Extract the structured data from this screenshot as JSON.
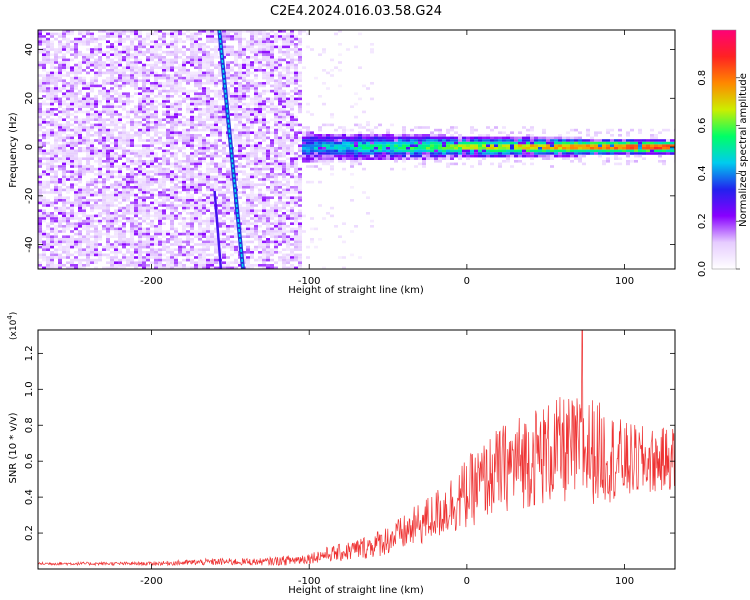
{
  "figure_title": "C2E4.2024.016.03.58.G24",
  "chart_data": [
    {
      "type": "heatmap",
      "xlabel": "Height of straight line (km)",
      "ylabel": "Frequency (Hz)",
      "xlim": [
        -272,
        132
      ],
      "ylim": [
        -50,
        48
      ],
      "x_ticks": [
        -200,
        -100,
        0,
        100
      ],
      "x_tick_labels": [
        "-200",
        "-100",
        "0",
        "100"
      ],
      "y_ticks": [
        -40,
        -20,
        0,
        20,
        40
      ],
      "y_tick_labels": [
        "-40",
        "-20",
        "0",
        "20",
        "40"
      ],
      "colorbar": {
        "label": "Normalized spectral amplitude",
        "range": [
          0,
          1
        ],
        "ticks": [
          0.0,
          0.2,
          0.4,
          0.6,
          0.8
        ],
        "tick_labels": [
          "0.0",
          "0.2",
          "0.4",
          "0.6",
          "0.8"
        ],
        "colormap": [
          "#ffffff",
          "#e6ccff",
          "#8800ff",
          "#2222ee",
          "#00ccee",
          "#00ff66",
          "#ccee00",
          "#ff8800",
          "#ff2222",
          "#ff0077"
        ]
      },
      "features": {
        "noise_region_x": [
          -272,
          -105
        ],
        "transition_x": -105,
        "signal_band_center_hz": 0,
        "signal_band_halfwidth_hz": [
          6,
          3
        ],
        "streak_line": {
          "x_start": -157,
          "y_start": 48,
          "x_end": -142,
          "y_end": -50
        },
        "streak_line_2": {
          "x_start": -160,
          "y_start": -18,
          "x_end": -156,
          "y_end": -50
        }
      }
    },
    {
      "type": "line",
      "xlabel": "Height of straight line (km)",
      "ylabel": "SNR (10 * v/v)",
      "y_multiplier": "(x10",
      "y_multiplier_exp": "4",
      "y_multiplier_close": ")",
      "xlim": [
        -272,
        132
      ],
      "ylim": [
        0,
        1.33
      ],
      "x_ticks": [
        -200,
        -100,
        0,
        100
      ],
      "x_tick_labels": [
        "-200",
        "-100",
        "0",
        "100"
      ],
      "y_ticks": [
        0.2,
        0.4,
        0.6,
        0.8,
        1.0,
        1.2
      ],
      "y_tick_labels": [
        "0.2",
        "0.4",
        "0.6",
        "0.8",
        "1.0",
        "1.2"
      ],
      "color": "#ee3333",
      "envelope": {
        "x": [
          -272,
          -200,
          -160,
          -130,
          -110,
          -100,
          -90,
          -80,
          -60,
          -40,
          -20,
          0,
          20,
          40,
          60,
          80,
          100,
          120,
          132
        ],
        "mean": [
          0.03,
          0.03,
          0.04,
          0.04,
          0.05,
          0.06,
          0.08,
          0.09,
          0.13,
          0.2,
          0.3,
          0.42,
          0.55,
          0.62,
          0.66,
          0.66,
          0.6,
          0.6,
          0.62
        ],
        "amplitude": [
          0.008,
          0.01,
          0.02,
          0.02,
          0.03,
          0.03,
          0.04,
          0.05,
          0.07,
          0.1,
          0.14,
          0.2,
          0.24,
          0.28,
          0.3,
          0.3,
          0.22,
          0.18,
          0.18
        ]
      },
      "peak": {
        "x": 73,
        "y": 1.33
      }
    }
  ]
}
